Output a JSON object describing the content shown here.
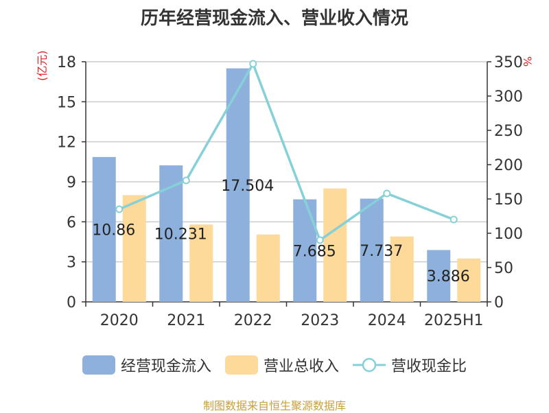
{
  "chart_data": {
    "type": "bar",
    "title": "历年经营现金流入、营业收入情况",
    "unit_left": "(亿元)",
    "unit_right": "%",
    "categories": [
      "2020",
      "2021",
      "2022",
      "2023",
      "2024",
      "2025H1"
    ],
    "y_left": {
      "ylim": [
        0,
        18
      ],
      "ticks": [
        "0",
        "3",
        "6",
        "9",
        "12",
        "15",
        "18"
      ]
    },
    "y_right": {
      "ylim": [
        0,
        350
      ],
      "ticks": [
        "0",
        "50",
        "100",
        "150",
        "200",
        "250",
        "300",
        "350"
      ]
    },
    "series": [
      {
        "name": "经营现金流入",
        "type": "bar",
        "axis": "left",
        "color": "#8eb0dc",
        "values": [
          10.86,
          10.231,
          17.504,
          7.685,
          7.737,
          3.886
        ],
        "labels": [
          "10.86",
          "10.231",
          "17.504",
          "7.685",
          "7.737",
          "3.886"
        ]
      },
      {
        "name": "营业总收入",
        "type": "bar",
        "axis": "left",
        "color": "#fdd99a",
        "values": [
          8.0,
          5.8,
          5.05,
          8.5,
          4.9,
          3.25
        ]
      },
      {
        "name": "营收现金比",
        "type": "line",
        "axis": "right",
        "color": "#86d0d8",
        "values": [
          135,
          177,
          347,
          90,
          158,
          120
        ]
      }
    ],
    "grid": true,
    "legend_position": "bottom"
  },
  "footer": "制图数据来自恒生聚源数据库"
}
